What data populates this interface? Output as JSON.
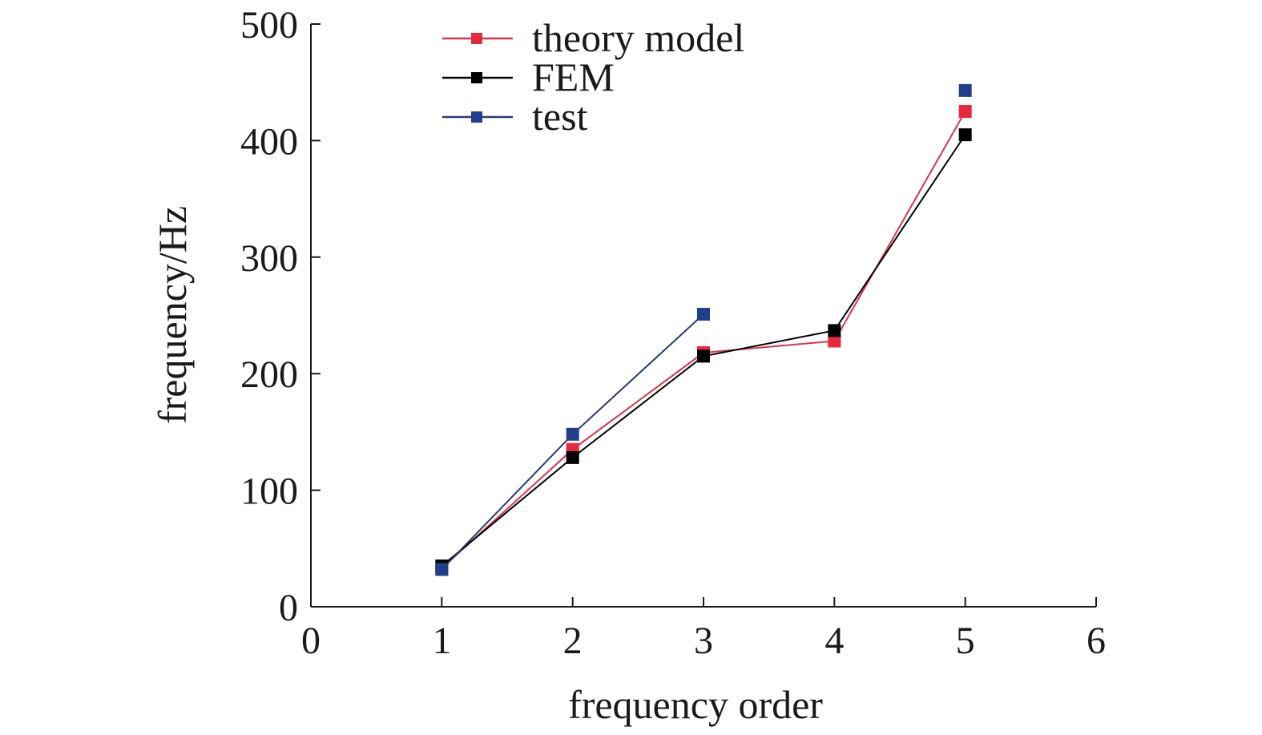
{
  "chart_data": {
    "type": "line",
    "title": "",
    "xlabel": "frequency order",
    "ylabel": "frequency/Hz",
    "xlim": [
      0,
      6
    ],
    "ylim": [
      0,
      500
    ],
    "xticks": [
      0,
      1,
      2,
      3,
      4,
      5,
      6
    ],
    "yticks": [
      0,
      100,
      200,
      300,
      400,
      500
    ],
    "grid": false,
    "legend_position": "top-center",
    "series": [
      {
        "name": "theory model",
        "color": "#e8283c",
        "line_color": "#d4364f",
        "marker": "square",
        "x": [
          1,
          2,
          3,
          4,
          5
        ],
        "y": [
          33,
          135,
          218,
          228,
          425
        ]
      },
      {
        "name": "FEM",
        "color": "#000000",
        "line_color": "#000000",
        "marker": "square",
        "x": [
          1,
          2,
          3,
          4,
          5
        ],
        "y": [
          35,
          128,
          215,
          237,
          405
        ]
      },
      {
        "name": "test",
        "color": "#1f3f8a",
        "line_color": "#2a3a6a",
        "marker": "square",
        "x": [
          1,
          2,
          3,
          5
        ],
        "y": [
          32,
          148,
          251,
          443
        ],
        "segments": [
          [
            1,
            2,
            3
          ]
        ]
      }
    ]
  }
}
